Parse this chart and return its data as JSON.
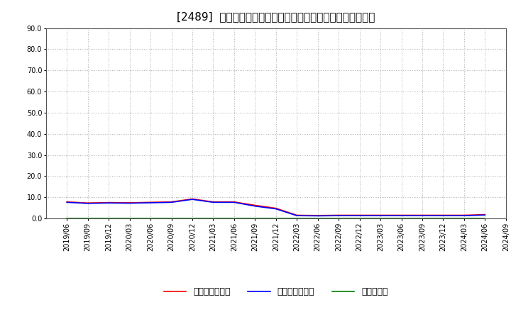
{
  "title": "[2489]  売上債権回転率、買入債務回転率、在庫回転率の推移",
  "x_labels": [
    "2019/06",
    "2019/09",
    "2019/12",
    "2020/03",
    "2020/06",
    "2020/09",
    "2020/12",
    "2021/03",
    "2021/06",
    "2021/09",
    "2021/12",
    "2022/03",
    "2022/06",
    "2022/09",
    "2022/12",
    "2023/03",
    "2023/06",
    "2023/09",
    "2023/12",
    "2024/03",
    "2024/06",
    "2024/09"
  ],
  "accounts_receivable_turnover": [
    7.8,
    7.3,
    7.5,
    7.4,
    7.6,
    7.8,
    9.2,
    7.8,
    7.8,
    6.2,
    4.8,
    1.5,
    1.4,
    1.5,
    1.5,
    1.5,
    1.5,
    1.5,
    1.5,
    1.5,
    1.8,
    null
  ],
  "accounts_payable_turnover": [
    7.6,
    7.1,
    7.3,
    7.2,
    7.4,
    7.6,
    9.0,
    7.6,
    7.6,
    5.8,
    4.5,
    1.3,
    1.2,
    1.3,
    1.3,
    1.3,
    1.3,
    1.3,
    1.3,
    1.3,
    1.6,
    null
  ],
  "inventory_turnover": [
    0.0,
    0.0,
    0.0,
    0.0,
    0.0,
    0.0,
    0.0,
    0.0,
    0.0,
    0.0,
    0.0,
    0.0,
    0.0,
    0.0,
    0.0,
    0.0,
    0.0,
    0.0,
    0.0,
    0.0,
    0.0,
    null
  ],
  "ar_color": "#ff0000",
  "ap_color": "#0000ff",
  "inv_color": "#008000",
  "ylim": [
    0.0,
    90.0
  ],
  "yticks": [
    0.0,
    10.0,
    20.0,
    30.0,
    40.0,
    50.0,
    60.0,
    70.0,
    80.0,
    90.0
  ],
  "bg_color": "#ffffff",
  "plot_bg_color": "#ffffff",
  "grid_color": "#999999",
  "legend_labels": [
    "売上債権回転率",
    "買入債務回転率",
    "在庫回転率"
  ],
  "title_fontsize": 11,
  "tick_fontsize": 7,
  "legend_fontsize": 9
}
